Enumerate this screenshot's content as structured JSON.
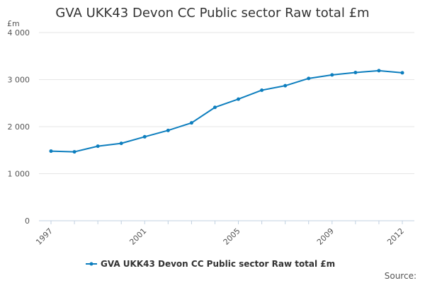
{
  "colors": {
    "series": "#0d7ebe",
    "grid": "#e6e6e6",
    "axis": "#c0d0e0",
    "text": "#555555",
    "title": "#333333"
  },
  "chart_data": {
    "type": "line",
    "title": "GVA UKK43 Devon CC Public sector Raw total £m",
    "ylabel": "£m",
    "xlabel": "",
    "x": [
      1997,
      1998,
      1999,
      2000,
      2001,
      2002,
      2003,
      2004,
      2005,
      2006,
      2007,
      2008,
      2009,
      2010,
      2011,
      2012
    ],
    "xlim": [
      1997,
      2012
    ],
    "xticks": [
      "1997",
      "2001",
      "2005",
      "2009",
      "2012"
    ],
    "ylim": [
      0,
      4000
    ],
    "yticks": [
      "0",
      "1 000",
      "2 000",
      "3 000",
      "4 000"
    ],
    "grid": true,
    "legend_position": "bottom",
    "series": [
      {
        "name": "GVA UKK43 Devon CC Public sector Raw total £m",
        "values": [
          1480,
          1465,
          1585,
          1645,
          1785,
          1920,
          2080,
          2410,
          2585,
          2775,
          2870,
          3025,
          3100,
          3150,
          3190,
          3145
        ]
      }
    ],
    "source": "Source:"
  }
}
